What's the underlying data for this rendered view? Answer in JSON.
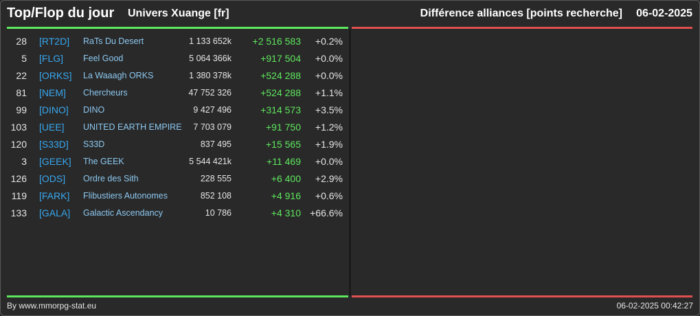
{
  "header": {
    "title": "Top/Flop du jour",
    "subtitle": "Univers Xuange [fr]",
    "right_title": "Différence alliances [points recherche]",
    "date": "06-02-2025"
  },
  "colors": {
    "top_accent": "#5ee85e",
    "flop_accent": "#e05050",
    "tag": "#38a8f0",
    "name": "#8cc8f0",
    "gain": "#5ee85e"
  },
  "top_rows": [
    {
      "rank": "28",
      "tag": "[RT2D]",
      "name": "RaTs Du Desert",
      "points": "1 133 652k",
      "diff": "+2 516 583",
      "pct": "+0.2%"
    },
    {
      "rank": "5",
      "tag": "[FLG]",
      "name": "Feel Good",
      "points": "5 064 366k",
      "diff": "+917 504",
      "pct": "+0.0%"
    },
    {
      "rank": "22",
      "tag": "[ORKS]",
      "name": "La Waaagh ORKS",
      "points": "1 380 378k",
      "diff": "+524 288",
      "pct": "+0.0%"
    },
    {
      "rank": "81",
      "tag": "[NEM]",
      "name": "Chercheurs",
      "points": "47 752 326",
      "diff": "+524 288",
      "pct": "+1.1%"
    },
    {
      "rank": "99",
      "tag": "[DINO]",
      "name": "DINO",
      "points": "9 427 496",
      "diff": "+314 573",
      "pct": "+3.5%"
    },
    {
      "rank": "103",
      "tag": "[UEE]",
      "name": "UNITED EARTH EMPIRE",
      "points": "7 703 079",
      "diff": "+91 750",
      "pct": "+1.2%"
    },
    {
      "rank": "120",
      "tag": "[S33D]",
      "name": "S33D",
      "points": "837 495",
      "diff": "+15 565",
      "pct": "+1.9%"
    },
    {
      "rank": "3",
      "tag": "[GEEK]",
      "name": "The GEEK",
      "points": "5 544 421k",
      "diff": "+11 469",
      "pct": "+0.0%"
    },
    {
      "rank": "126",
      "tag": "[ODS]",
      "name": "Ordre des Sith",
      "points": "228 555",
      "diff": "+6 400",
      "pct": "+2.9%"
    },
    {
      "rank": "119",
      "tag": "[FARK]",
      "name": "Flibustiers Autonomes",
      "points": "852 108",
      "diff": "+4 916",
      "pct": "+0.6%"
    },
    {
      "rank": "133",
      "tag": "[GALA]",
      "name": "Galactic Ascendancy",
      "points": "10 786",
      "diff": "+4 310",
      "pct": "+66.6%"
    }
  ],
  "footer": {
    "credit": "By www.mmorpg-stat.eu",
    "timestamp": "06-02-2025 00:42:27"
  }
}
